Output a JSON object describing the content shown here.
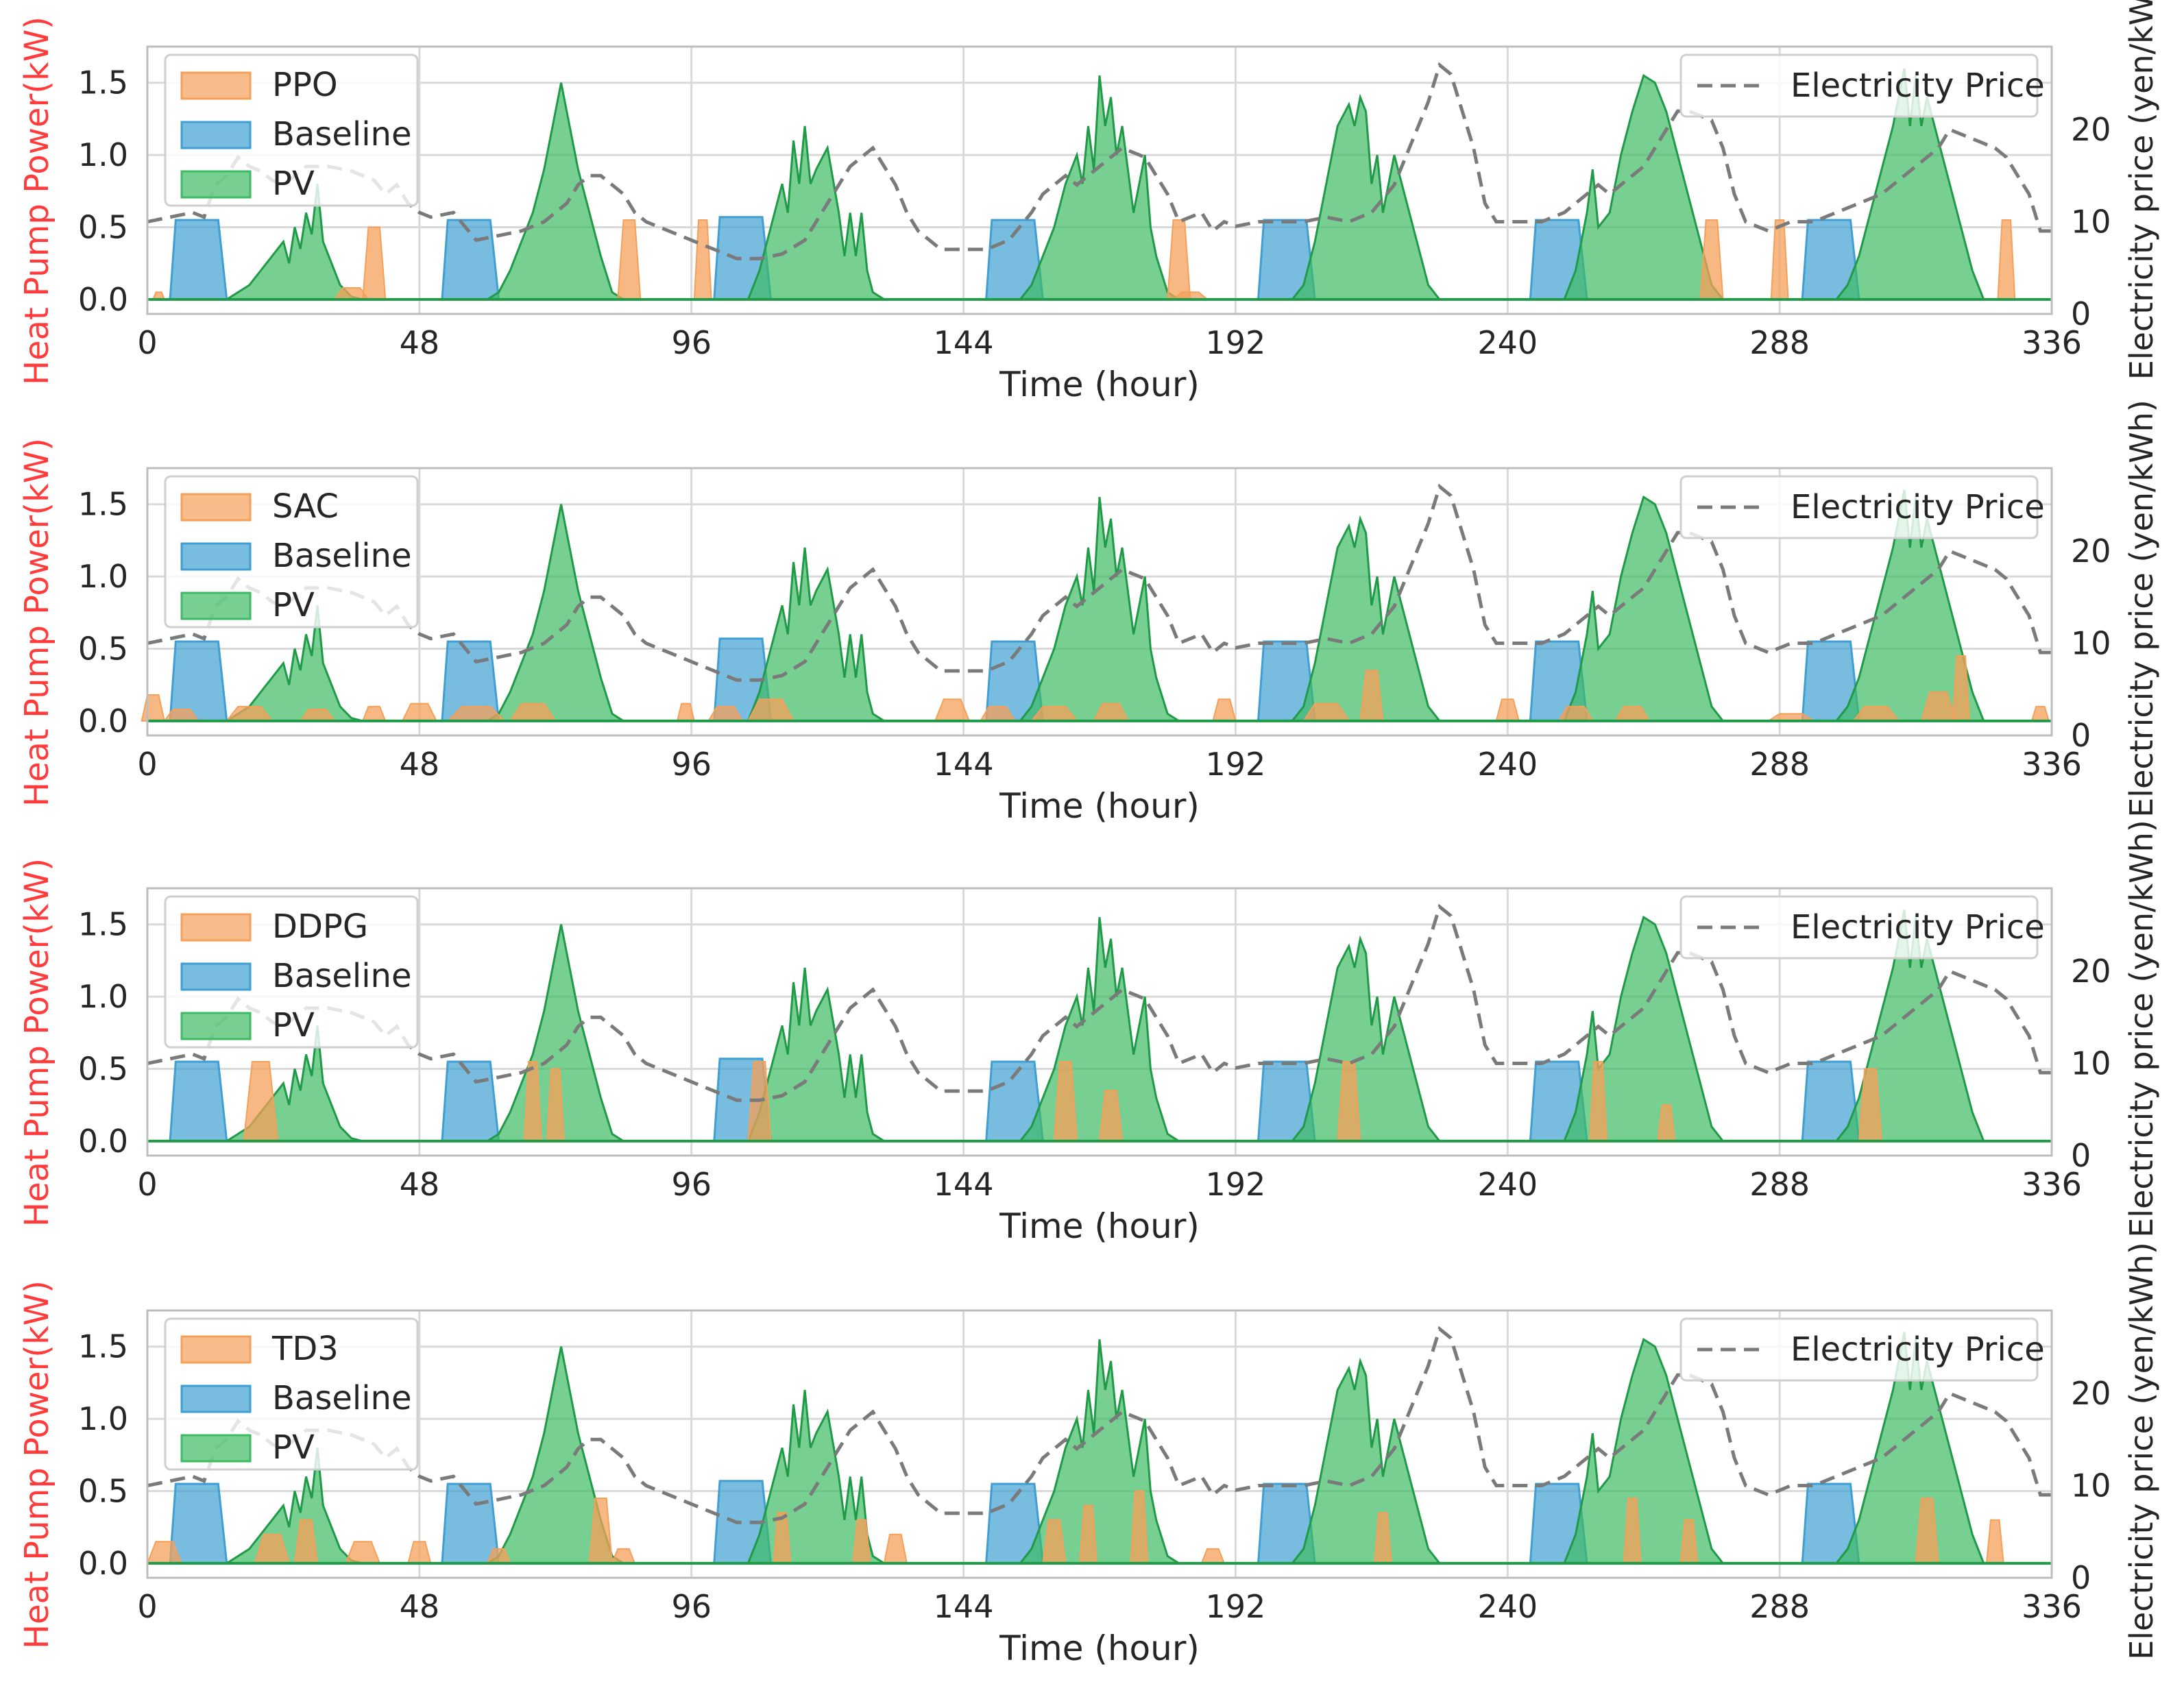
{
  "colors": {
    "agent": "#f5a05a",
    "baseline": "#3f9fd3",
    "pv": "#3dbb63",
    "price": "#7a7a7a",
    "left_axis_label": "#ff3b3b",
    "grid": "#d9d9d9",
    "axes_edge": "#bdbdbd"
  },
  "chart_data": [
    {
      "type": "area",
      "agent": "PPO",
      "xlabel": "Time (hour)",
      "ylabel_left": "Heat Pump Power(kW)",
      "ylabel_right": "Electricity price (yen/kW",
      "xlim": [
        0,
        336
      ],
      "ylim_left": [
        -0.1,
        1.75
      ],
      "ylim_right": [
        0,
        29
      ],
      "xticks": [
        "0",
        "48",
        "96",
        "144",
        "192",
        "240",
        "288",
        "336"
      ],
      "yticks_left": [
        "0.0",
        "0.5",
        "1.0",
        "1.5"
      ],
      "yticks_right": [
        "0",
        "10",
        "20"
      ],
      "grid": true,
      "legend_left": [
        "PPO",
        "Baseline",
        "PV"
      ],
      "legend_right": [
        "Electricity Price"
      ],
      "legend_left_placement": "top-left",
      "legend_right_placement": "top-right",
      "agent_pulses": [
        [
          2,
          0.05,
          2
        ],
        [
          36,
          0.08,
          6
        ],
        [
          40,
          0.5,
          4
        ],
        [
          85,
          0.55,
          4
        ],
        [
          98,
          0.55,
          3
        ],
        [
          182,
          0.55,
          4
        ],
        [
          184,
          0.05,
          6
        ],
        [
          276,
          0.55,
          4
        ],
        [
          288,
          0.55,
          3
        ],
        [
          328,
          0.55,
          3
        ]
      ]
    },
    {
      "type": "area",
      "agent": "SAC",
      "xlabel": "Time (hour)",
      "ylabel_left": "Heat Pump Power(kW)",
      "ylabel_right": "Electricity price (yen/kWh)",
      "xlim": [
        0,
        336
      ],
      "ylim_left": [
        -0.1,
        1.75
      ],
      "ylim_right": [
        0,
        29
      ],
      "xticks": [
        "0",
        "48",
        "96",
        "144",
        "192",
        "240",
        "288",
        "336"
      ],
      "yticks_left": [
        "0.0",
        "0.5",
        "1.0",
        "1.5"
      ],
      "yticks_right": [
        "0",
        "10",
        "20"
      ],
      "grid": true,
      "legend_left": [
        "SAC",
        "Baseline",
        "PV"
      ],
      "legend_right": [
        "Electricity Price"
      ],
      "legend_right_placement": "top-right",
      "legend_left_placement": "top-left",
      "agent_pulses": [
        [
          1,
          0.18,
          4
        ],
        [
          6,
          0.08,
          6
        ],
        [
          18,
          0.1,
          8
        ],
        [
          30,
          0.08,
          6
        ],
        [
          40,
          0.1,
          4
        ],
        [
          48,
          0.12,
          6
        ],
        [
          58,
          0.1,
          10
        ],
        [
          68,
          0.12,
          8
        ],
        [
          95,
          0.12,
          3
        ],
        [
          102,
          0.1,
          6
        ],
        [
          110,
          0.15,
          8
        ],
        [
          142,
          0.15,
          6
        ],
        [
          150,
          0.1,
          6
        ],
        [
          160,
          0.1,
          8
        ],
        [
          170,
          0.12,
          6
        ],
        [
          190,
          0.15,
          4
        ],
        [
          208,
          0.12,
          8
        ],
        [
          216,
          0.35,
          4
        ],
        [
          240,
          0.15,
          4
        ],
        [
          252,
          0.1,
          6
        ],
        [
          262,
          0.1,
          6
        ],
        [
          290,
          0.05,
          8
        ],
        [
          305,
          0.1,
          8
        ],
        [
          316,
          0.2,
          6
        ],
        [
          320,
          0.45,
          3
        ],
        [
          334,
          0.1,
          3
        ]
      ]
    },
    {
      "type": "area",
      "agent": "DDPG",
      "xlabel": "Time (hour)",
      "ylabel_left": "Heat Pump Power(kW)",
      "ylabel_right": "Electricity price (yen/kWh)",
      "xlim": [
        0,
        336
      ],
      "ylim_left": [
        -0.1,
        1.75
      ],
      "ylim_right": [
        0,
        29
      ],
      "xticks": [
        "0",
        "48",
        "96",
        "144",
        "192",
        "240",
        "288",
        "336"
      ],
      "yticks_left": [
        "0.0",
        "0.5",
        "1.0",
        "1.5"
      ],
      "yticks_right": [
        "0",
        "10",
        "20"
      ],
      "grid": true,
      "legend_left": [
        "DDPG",
        "Baseline",
        "PV"
      ],
      "legend_right": [
        "Electricity Price"
      ],
      "legend_left_placement": "top-left",
      "legend_right_placement": "top-right",
      "agent_pulses": [
        [
          20,
          0.55,
          6
        ],
        [
          68,
          0.55,
          3
        ],
        [
          72,
          0.5,
          3
        ],
        [
          108,
          0.55,
          4
        ],
        [
          162,
          0.55,
          4
        ],
        [
          170,
          0.35,
          4
        ],
        [
          212,
          0.55,
          4
        ],
        [
          256,
          0.55,
          3
        ],
        [
          268,
          0.25,
          3
        ],
        [
          304,
          0.5,
          4
        ]
      ]
    },
    {
      "type": "area",
      "agent": "TD3",
      "xlabel": "Time (hour)",
      "ylabel_left": "Heat Pump Power(kW)",
      "ylabel_right": "Electricity price (yen/kWh)",
      "xlim": [
        0,
        336
      ],
      "ylim_left": [
        -0.1,
        1.75
      ],
      "ylim_right": [
        0,
        29
      ],
      "xticks": [
        "0",
        "48",
        "96",
        "144",
        "192",
        "240",
        "288",
        "336"
      ],
      "yticks_left": [
        "0.0",
        "0.5",
        "1.0",
        "1.5"
      ],
      "yticks_right": [
        "0",
        "10",
        "20"
      ],
      "grid": true,
      "legend_left": [
        "TD3",
        "Baseline",
        "PV"
      ],
      "legend_right": [
        "Electricity Price"
      ],
      "legend_left_placement": "top-left",
      "legend_right_placement": "top-right",
      "agent_pulses": [
        [
          3,
          0.15,
          6
        ],
        [
          22,
          0.2,
          6
        ],
        [
          28,
          0.3,
          4
        ],
        [
          38,
          0.15,
          6
        ],
        [
          48,
          0.15,
          4
        ],
        [
          62,
          0.1,
          4
        ],
        [
          80,
          0.45,
          4
        ],
        [
          84,
          0.1,
          4
        ],
        [
          112,
          0.35,
          3
        ],
        [
          126,
          0.3,
          3
        ],
        [
          132,
          0.2,
          4
        ],
        [
          160,
          0.3,
          4
        ],
        [
          166,
          0.4,
          3
        ],
        [
          175,
          0.5,
          3
        ],
        [
          188,
          0.1,
          4
        ],
        [
          218,
          0.35,
          3
        ],
        [
          262,
          0.45,
          3
        ],
        [
          272,
          0.3,
          3
        ],
        [
          314,
          0.45,
          4
        ],
        [
          326,
          0.3,
          3
        ]
      ]
    }
  ],
  "shared_series": {
    "baseline_blocks": [
      [
        4,
        14,
        0.55
      ],
      [
        52,
        62,
        0.55
      ],
      [
        100,
        110,
        0.57
      ],
      [
        148,
        158,
        0.55
      ],
      [
        196,
        206,
        0.55
      ],
      [
        244,
        254,
        0.55
      ],
      [
        292,
        302,
        0.55
      ]
    ],
    "pv": [
      [
        14,
        0
      ],
      [
        16,
        0.05
      ],
      [
        18,
        0.1
      ],
      [
        20,
        0.2
      ],
      [
        22,
        0.3
      ],
      [
        24,
        0.4
      ],
      [
        25,
        0.25
      ],
      [
        26,
        0.5
      ],
      [
        27,
        0.35
      ],
      [
        28,
        0.6
      ],
      [
        29,
        0.45
      ],
      [
        30,
        0.8
      ],
      [
        31,
        0.4
      ],
      [
        32,
        0.3
      ],
      [
        34,
        0.1
      ],
      [
        36,
        0.02
      ],
      [
        38,
        0
      ],
      [
        60,
        0
      ],
      [
        62,
        0.05
      ],
      [
        64,
        0.2
      ],
      [
        66,
        0.4
      ],
      [
        68,
        0.6
      ],
      [
        70,
        0.9
      ],
      [
        72,
        1.3
      ],
      [
        73,
        1.5
      ],
      [
        74,
        1.3
      ],
      [
        76,
        0.9
      ],
      [
        78,
        0.6
      ],
      [
        80,
        0.3
      ],
      [
        82,
        0.05
      ],
      [
        84,
        0
      ],
      [
        106,
        0
      ],
      [
        108,
        0.2
      ],
      [
        110,
        0.5
      ],
      [
        112,
        0.8
      ],
      [
        113,
        0.6
      ],
      [
        114,
        1.1
      ],
      [
        115,
        0.8
      ],
      [
        116,
        1.2
      ],
      [
        117,
        0.8
      ],
      [
        118,
        0.9
      ],
      [
        120,
        1.05
      ],
      [
        122,
        0.6
      ],
      [
        123,
        0.3
      ],
      [
        124,
        0.6
      ],
      [
        125,
        0.3
      ],
      [
        126,
        0.6
      ],
      [
        127,
        0.2
      ],
      [
        128,
        0.05
      ],
      [
        130,
        0
      ],
      [
        154,
        0
      ],
      [
        156,
        0.1
      ],
      [
        158,
        0.3
      ],
      [
        160,
        0.5
      ],
      [
        162,
        0.8
      ],
      [
        164,
        1.0
      ],
      [
        165,
        0.8
      ],
      [
        166,
        1.2
      ],
      [
        167,
        0.9
      ],
      [
        168,
        1.55
      ],
      [
        169,
        1.2
      ],
      [
        170,
        1.4
      ],
      [
        171,
        1.0
      ],
      [
        172,
        1.2
      ],
      [
        174,
        0.6
      ],
      [
        176,
        1.0
      ],
      [
        177,
        0.5
      ],
      [
        178,
        0.3
      ],
      [
        180,
        0.05
      ],
      [
        182,
        0
      ],
      [
        202,
        0
      ],
      [
        204,
        0.1
      ],
      [
        206,
        0.4
      ],
      [
        208,
        0.8
      ],
      [
        210,
        1.2
      ],
      [
        212,
        1.35
      ],
      [
        213,
        1.2
      ],
      [
        214,
        1.4
      ],
      [
        215,
        1.3
      ],
      [
        216,
        0.8
      ],
      [
        217,
        1.0
      ],
      [
        218,
        0.6
      ],
      [
        220,
        1.0
      ],
      [
        222,
        0.7
      ],
      [
        224,
        0.4
      ],
      [
        226,
        0.1
      ],
      [
        228,
        0
      ],
      [
        250,
        0
      ],
      [
        252,
        0.2
      ],
      [
        254,
        0.6
      ],
      [
        255,
        0.9
      ],
      [
        256,
        0.5
      ],
      [
        258,
        0.6
      ],
      [
        260,
        1.0
      ],
      [
        262,
        1.3
      ],
      [
        264,
        1.55
      ],
      [
        266,
        1.5
      ],
      [
        268,
        1.3
      ],
      [
        270,
        1.0
      ],
      [
        272,
        0.7
      ],
      [
        274,
        0.4
      ],
      [
        276,
        0.1
      ],
      [
        278,
        0
      ],
      [
        298,
        0
      ],
      [
        300,
        0.1
      ],
      [
        302,
        0.3
      ],
      [
        304,
        0.6
      ],
      [
        306,
        0.9
      ],
      [
        308,
        1.2
      ],
      [
        310,
        1.6
      ],
      [
        311,
        1.2
      ],
      [
        312,
        1.55
      ],
      [
        313,
        1.2
      ],
      [
        314,
        1.4
      ],
      [
        316,
        1.1
      ],
      [
        318,
        0.8
      ],
      [
        320,
        0.5
      ],
      [
        322,
        0.2
      ],
      [
        324,
        0
      ]
    ],
    "price": [
      [
        0,
        10
      ],
      [
        4,
        10.5
      ],
      [
        8,
        11
      ],
      [
        10,
        10.5
      ],
      [
        12,
        14
      ],
      [
        14,
        15
      ],
      [
        16,
        17
      ],
      [
        18,
        16
      ],
      [
        20,
        15.5
      ],
      [
        22,
        14.5
      ],
      [
        24,
        14
      ],
      [
        26,
        15
      ],
      [
        28,
        16
      ],
      [
        32,
        16
      ],
      [
        36,
        15.5
      ],
      [
        40,
        14.5
      ],
      [
        42,
        13
      ],
      [
        44,
        14
      ],
      [
        46,
        12
      ],
      [
        48,
        11
      ],
      [
        50,
        10.5
      ],
      [
        54,
        11
      ],
      [
        56,
        9.5
      ],
      [
        58,
        8
      ],
      [
        62,
        8.5
      ],
      [
        66,
        9
      ],
      [
        70,
        10
      ],
      [
        74,
        12
      ],
      [
        76,
        14
      ],
      [
        78,
        15
      ],
      [
        80,
        15
      ],
      [
        82,
        14
      ],
      [
        84,
        13
      ],
      [
        86,
        11
      ],
      [
        88,
        10
      ],
      [
        92,
        9
      ],
      [
        96,
        8
      ],
      [
        100,
        7
      ],
      [
        104,
        6
      ],
      [
        108,
        6
      ],
      [
        112,
        6.5
      ],
      [
        116,
        8
      ],
      [
        118,
        10
      ],
      [
        120,
        12
      ],
      [
        122,
        14
      ],
      [
        124,
        16
      ],
      [
        126,
        17
      ],
      [
        128,
        18
      ],
      [
        130,
        16
      ],
      [
        132,
        14
      ],
      [
        134,
        11
      ],
      [
        136,
        9
      ],
      [
        140,
        7
      ],
      [
        144,
        7
      ],
      [
        148,
        7
      ],
      [
        152,
        8
      ],
      [
        156,
        11
      ],
      [
        158,
        13
      ],
      [
        160,
        14
      ],
      [
        162,
        15
      ],
      [
        164,
        14
      ],
      [
        166,
        15
      ],
      [
        168,
        16
      ],
      [
        170,
        17
      ],
      [
        172,
        18
      ],
      [
        176,
        17
      ],
      [
        178,
        15
      ],
      [
        180,
        13
      ],
      [
        182,
        10
      ],
      [
        186,
        11
      ],
      [
        188,
        9
      ],
      [
        190,
        10
      ],
      [
        192,
        9.5
      ],
      [
        196,
        10
      ],
      [
        200,
        10
      ],
      [
        204,
        10
      ],
      [
        208,
        10.5
      ],
      [
        212,
        10
      ],
      [
        216,
        11
      ],
      [
        220,
        14
      ],
      [
        222,
        17
      ],
      [
        224,
        20
      ],
      [
        226,
        23
      ],
      [
        228,
        27
      ],
      [
        230,
        26
      ],
      [
        232,
        22
      ],
      [
        234,
        18
      ],
      [
        236,
        12
      ],
      [
        238,
        10
      ],
      [
        242,
        10
      ],
      [
        246,
        10
      ],
      [
        250,
        11
      ],
      [
        254,
        13
      ],
      [
        256,
        14
      ],
      [
        258,
        13
      ],
      [
        262,
        15
      ],
      [
        264,
        16
      ],
      [
        266,
        18
      ],
      [
        268,
        20
      ],
      [
        270,
        22
      ],
      [
        272,
        22
      ],
      [
        276,
        21
      ],
      [
        278,
        18
      ],
      [
        280,
        13
      ],
      [
        282,
        10
      ],
      [
        286,
        9
      ],
      [
        290,
        10
      ],
      [
        294,
        10
      ],
      [
        298,
        11
      ],
      [
        302,
        12
      ],
      [
        306,
        13
      ],
      [
        308,
        14
      ],
      [
        312,
        16
      ],
      [
        316,
        18
      ],
      [
        318,
        20
      ],
      [
        322,
        19
      ],
      [
        326,
        18
      ],
      [
        328,
        17
      ],
      [
        330,
        15
      ],
      [
        332,
        13
      ],
      [
        334,
        9
      ],
      [
        336,
        9
      ]
    ]
  }
}
